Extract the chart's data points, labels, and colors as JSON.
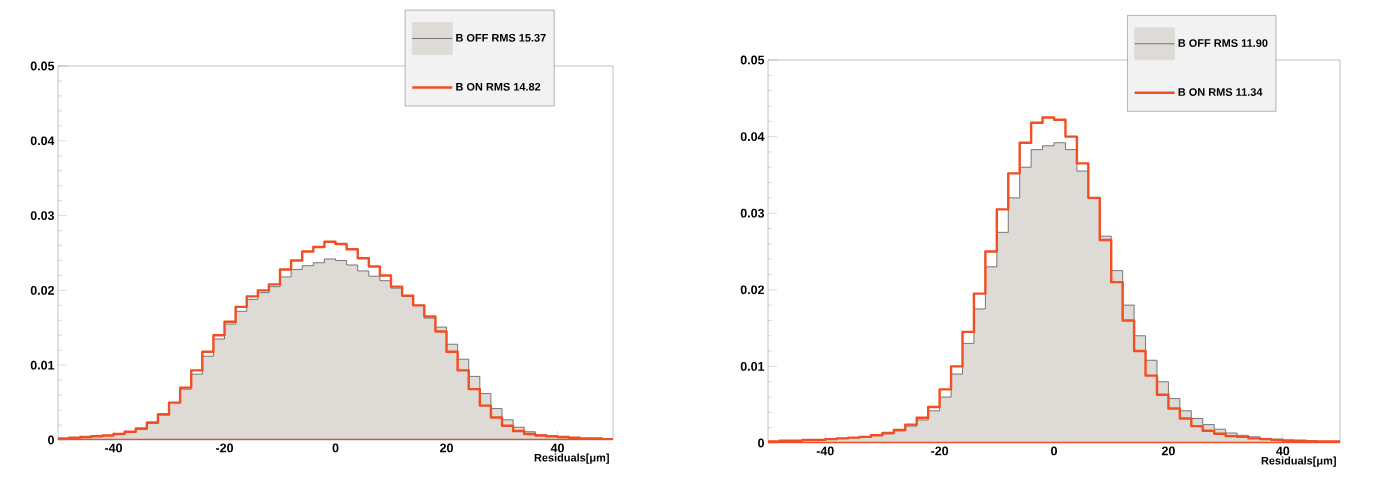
{
  "chart_data": [
    {
      "type": "histogram",
      "xlabel": "Residuals[μm]",
      "xlim": [
        -50,
        50
      ],
      "ylim": [
        0,
        0.05
      ],
      "xticks": [
        -40,
        -20,
        0,
        20,
        40
      ],
      "yticks": [
        0,
        0.01,
        0.02,
        0.03,
        0.04,
        0.05
      ],
      "legend": "top right",
      "bins": [
        -50,
        -48,
        -46,
        -44,
        -42,
        -40,
        -38,
        -36,
        -34,
        -32,
        -30,
        -28,
        -26,
        -24,
        -22,
        -20,
        -18,
        -16,
        -14,
        -12,
        -10,
        -8,
        -6,
        -4,
        -2,
        0,
        2,
        4,
        6,
        8,
        10,
        12,
        14,
        16,
        18,
        20,
        22,
        24,
        26,
        28,
        30,
        32,
        34,
        36,
        38,
        40,
        42,
        44,
        46,
        48,
        50
      ],
      "series": [
        {
          "name": "B OFF RMS 15.37",
          "color": "#dedbd7",
          "values": [
            0.0002,
            0.0003,
            0.0004,
            0.0005,
            0.0006,
            0.0008,
            0.0011,
            0.0016,
            0.0024,
            0.0035,
            0.005,
            0.0068,
            0.0088,
            0.0112,
            0.0135,
            0.0155,
            0.0172,
            0.0188,
            0.0197,
            0.0205,
            0.0218,
            0.0228,
            0.0233,
            0.0237,
            0.0242,
            0.024,
            0.0234,
            0.0226,
            0.0219,
            0.0213,
            0.0203,
            0.0192,
            0.018,
            0.0163,
            0.0151,
            0.0128,
            0.0108,
            0.0085,
            0.0062,
            0.0042,
            0.0027,
            0.0017,
            0.0011,
            0.0007,
            0.0005,
            0.0004,
            0.0003,
            0.0002,
            0.0002,
            0.0001
          ]
        },
        {
          "name": "B ON RMS 14.82",
          "color": "#f04e23",
          "values": [
            0.0002,
            0.0003,
            0.0004,
            0.0005,
            0.0006,
            0.0008,
            0.0011,
            0.0015,
            0.0023,
            0.0034,
            0.005,
            0.007,
            0.0093,
            0.0118,
            0.014,
            0.0158,
            0.0178,
            0.0192,
            0.02,
            0.0208,
            0.0228,
            0.024,
            0.0252,
            0.0258,
            0.0265,
            0.0262,
            0.0255,
            0.0243,
            0.0232,
            0.022,
            0.0205,
            0.0193,
            0.018,
            0.0165,
            0.0145,
            0.0118,
            0.0093,
            0.0068,
            0.0046,
            0.003,
            0.0019,
            0.0012,
            0.0008,
            0.0006,
            0.0005,
            0.0004,
            0.0003,
            0.0002,
            0.0002,
            0.0001
          ]
        }
      ]
    },
    {
      "type": "histogram",
      "xlabel": "Residuals[μm]",
      "xlim": [
        -50,
        50
      ],
      "ylim": [
        0,
        0.05
      ],
      "xticks": [
        -40,
        -20,
        0,
        20,
        40
      ],
      "yticks": [
        0,
        0.01,
        0.02,
        0.03,
        0.04,
        0.05
      ],
      "legend": "top right",
      "bins": [
        -50,
        -48,
        -46,
        -44,
        -42,
        -40,
        -38,
        -36,
        -34,
        -32,
        -30,
        -28,
        -26,
        -24,
        -22,
        -20,
        -18,
        -16,
        -14,
        -12,
        -10,
        -8,
        -6,
        -4,
        -2,
        0,
        2,
        4,
        6,
        8,
        10,
        12,
        14,
        16,
        18,
        20,
        22,
        24,
        26,
        28,
        30,
        32,
        34,
        36,
        38,
        40,
        42,
        44,
        46,
        48,
        50
      ],
      "series": [
        {
          "name": "B OFF RMS 11.90",
          "color": "#dedbd7",
          "values": [
            0.0002,
            0.0003,
            0.0003,
            0.0004,
            0.0004,
            0.0005,
            0.0006,
            0.0007,
            0.0008,
            0.001,
            0.0012,
            0.0016,
            0.0022,
            0.003,
            0.0042,
            0.006,
            0.009,
            0.013,
            0.0175,
            0.023,
            0.0275,
            0.032,
            0.036,
            0.0383,
            0.0388,
            0.0392,
            0.0383,
            0.0355,
            0.032,
            0.027,
            0.0225,
            0.018,
            0.014,
            0.0108,
            0.008,
            0.0058,
            0.0042,
            0.0032,
            0.0024,
            0.0018,
            0.0013,
            0.001,
            0.0008,
            0.0006,
            0.0005,
            0.0004,
            0.0003,
            0.0003,
            0.0002,
            0.0002
          ]
        },
        {
          "name": "B ON RMS 11.34",
          "color": "#f04e23",
          "values": [
            0.0002,
            0.0003,
            0.0003,
            0.0004,
            0.0004,
            0.0005,
            0.0006,
            0.0007,
            0.0008,
            0.001,
            0.0013,
            0.0017,
            0.0024,
            0.0033,
            0.0047,
            0.007,
            0.01,
            0.0145,
            0.0195,
            0.025,
            0.0305,
            0.0352,
            0.0392,
            0.0418,
            0.0425,
            0.0422,
            0.04,
            0.0365,
            0.032,
            0.0265,
            0.021,
            0.016,
            0.012,
            0.0088,
            0.0063,
            0.0045,
            0.0032,
            0.0022,
            0.0016,
            0.0012,
            0.0009,
            0.0008,
            0.0006,
            0.0005,
            0.0004,
            0.0003,
            0.0003,
            0.0002,
            0.0002,
            0.0002
          ]
        }
      ]
    }
  ]
}
